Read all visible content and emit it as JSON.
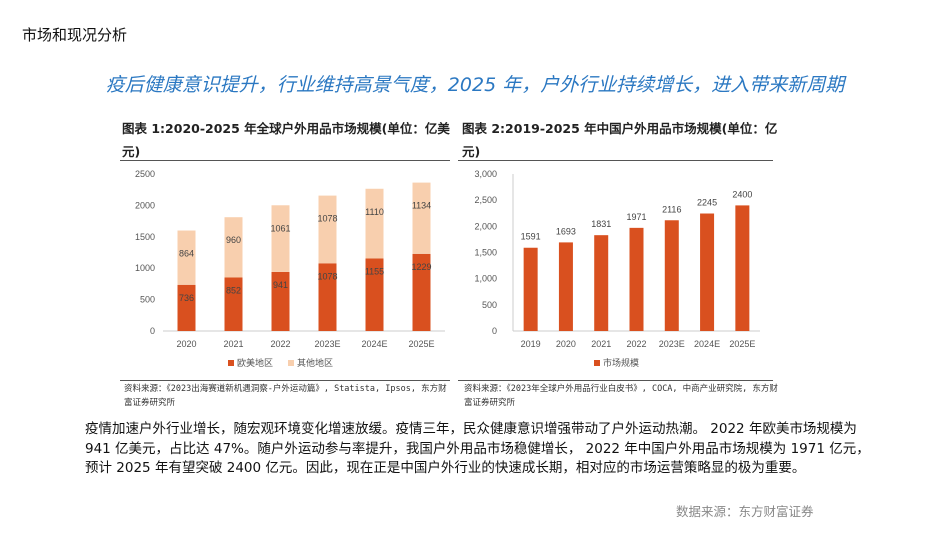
{
  "section_title": "市场和现况分析",
  "headline": "疫后健康意识提升，行业维持高景气度，2025 年，户外行业持续增长，进入带来新周期",
  "chart_data": [
    {
      "type": "bar",
      "stacked": true,
      "title": "图表 1:2020-2025 年全球户外用品市场规模(单位：亿美元)",
      "categories": [
        "2020",
        "2021",
        "2022",
        "2023E",
        "2024E",
        "2025E"
      ],
      "series": [
        {
          "name": "欧美地区",
          "values": [
            736,
            852,
            941,
            1078,
            1155,
            1229
          ],
          "color": "#d9501f"
        },
        {
          "name": "其他地区",
          "values": [
            864,
            960,
            1061,
            1078,
            1110,
            1134
          ],
          "color": "#f8cfae"
        }
      ],
      "ylim": [
        0,
        2500
      ],
      "yticks": [
        "0",
        "500",
        "1000",
        "1500",
        "2000",
        "2500"
      ],
      "legend": "bottom",
      "source": "资料来源：《2023出海赛道新机遇洞察-户外运动篇》, Statista, Ipsos, 东方财富证券研究所"
    },
    {
      "type": "bar",
      "title": "图表 2:2019-2025 年中国户外用品市场规模(单位：亿元)",
      "categories": [
        "2019",
        "2020",
        "2021",
        "2022",
        "2023E",
        "2024E",
        "2025E"
      ],
      "series": [
        {
          "name": "市场规模",
          "values": [
            1591,
            1693,
            1831,
            1971,
            2116,
            2245,
            2400
          ],
          "color": "#d9501f"
        }
      ],
      "ylim": [
        0,
        3000
      ],
      "yticks": [
        "0",
        "500",
        "1,000",
        "1,500",
        "2,000",
        "2,500",
        "3,000"
      ],
      "legend": "bottom",
      "source": "资料来源：《2023年全球户外用品行业白皮书》, COCA, 中商产业研究院, 东方财富证券研究所"
    }
  ],
  "body": "疫情加速户外行业增长，随宏观环境变化增速放缓。疫情三年，民众健康意识增强带动了户外运动热潮。 2022 年欧美市场规模为 941  亿美元，占比达 47%。随户外运动参与率提升，我国户外用品市场稳健增长， 2022 年中国户外用品市场规模为 1971  亿元，预计 2025  年有望突破 2400  亿元。因此，现在正是中国户外行业的快速成长期，相对应的市场运营策略显的极为重要。",
  "footer": "数据来源：东方财富证券"
}
